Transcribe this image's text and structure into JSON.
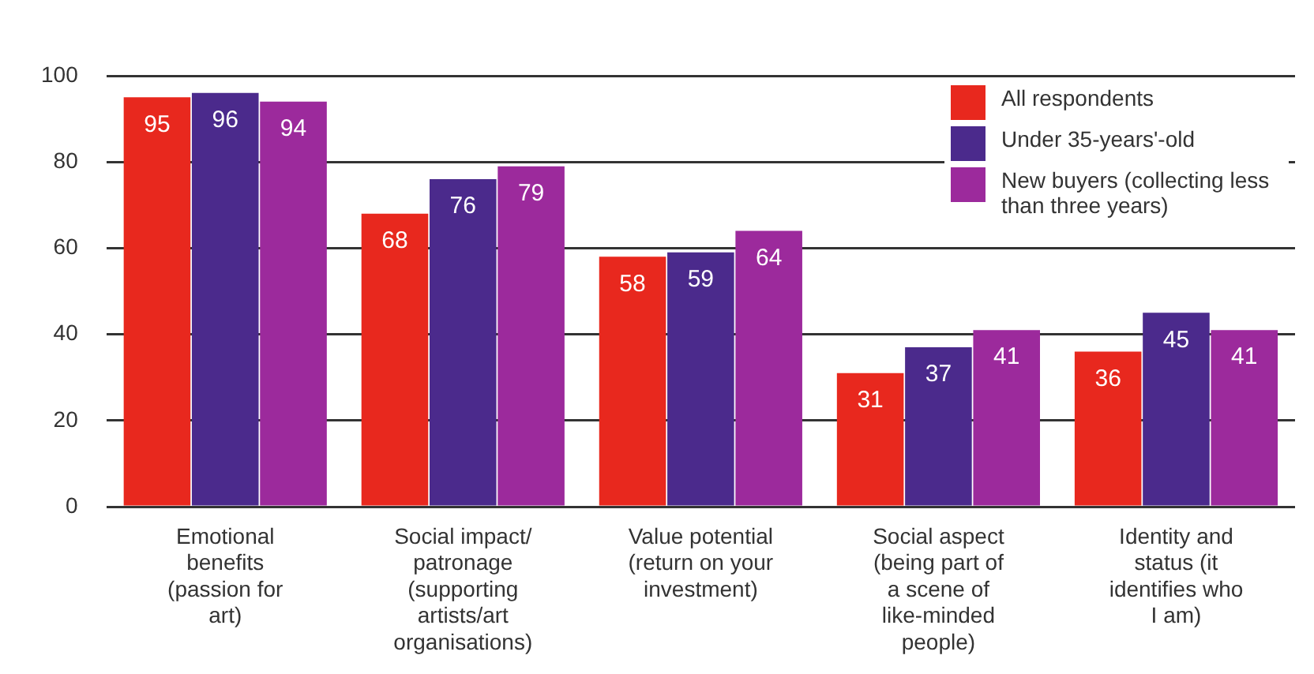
{
  "chart_data": {
    "type": "bar",
    "categories": [
      "Emotional benefits (passion for art)",
      "Social impact/ patronage (supporting artists/art organisations)",
      "Value potential (return on your investment)",
      "Social aspect (being part of a scene of like-minded people)",
      "Identity and status (it identifies who I am)"
    ],
    "series": [
      {
        "name": "All respondents",
        "color": "#e8281e",
        "values": [
          95,
          68,
          58,
          31,
          36
        ]
      },
      {
        "name": "Under 35-years'-old",
        "color": "#4b2a8c",
        "values": [
          96,
          76,
          59,
          37,
          45
        ]
      },
      {
        "name": "New buyers (collecting less than three years)",
        "color": "#9c2a9c",
        "values": [
          94,
          79,
          64,
          41,
          41
        ]
      }
    ],
    "ylim": [
      0,
      100
    ],
    "yticks": [
      0,
      20,
      40,
      60,
      80,
      100
    ],
    "grid": "y",
    "legend": "top right",
    "data_labels": true
  }
}
